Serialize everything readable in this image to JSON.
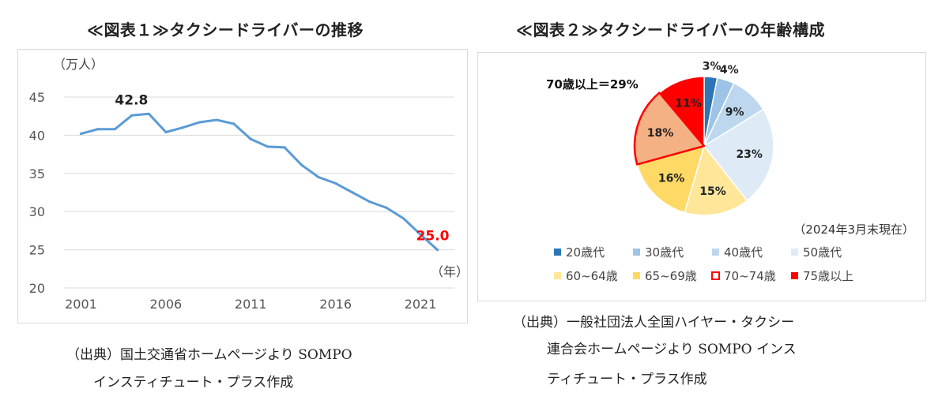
{
  "figure1": {
    "title": "≪図表１≫タクシードライバーの推移",
    "source_line1": "（出典）国土交通省ホームページより SOMPO",
    "source_line2": "インスティチュート・プラス作成"
  },
  "figure2": {
    "title": "≪図表２≫タクシードライバーの年齢構成",
    "source_line1": "（出典）一般社団法人全国ハイヤー・タクシー",
    "source_line2": "連合会ホームページより SOMPO インス",
    "source_line3": "ティチュート・プラス作成"
  },
  "chart_data": [
    {
      "type": "line",
      "ylabel": "（万人）",
      "xlabel": "（年）",
      "ylim": [
        20,
        45
      ],
      "xlim": [
        2000,
        2023
      ],
      "yticks": [
        20,
        25,
        30,
        35,
        40,
        45
      ],
      "xticks": [
        2001,
        2006,
        2011,
        2016,
        2021
      ],
      "grid": true,
      "color": "#5b9bd5",
      "series": [
        {
          "x": [
            2001,
            2002,
            2003,
            2004,
            2005,
            2006,
            2007,
            2008,
            2009,
            2010,
            2011,
            2012,
            2013,
            2014,
            2015,
            2016,
            2017,
            2018,
            2019,
            2020,
            2021,
            2022
          ],
          "values": [
            40.2,
            40.8,
            40.8,
            42.6,
            42.8,
            40.4,
            41.0,
            41.7,
            42.0,
            41.5,
            39.5,
            38.5,
            38.4,
            36.1,
            34.5,
            33.7,
            32.5,
            31.3,
            30.5,
            29.1,
            27.0,
            25.0
          ]
        }
      ],
      "annotations": [
        {
          "text": "42.8",
          "x": 2005,
          "y": 42.8,
          "color": "#222222"
        },
        {
          "text": "25.0",
          "x": 2022,
          "y": 25.0,
          "color": "#ff0000"
        }
      ]
    },
    {
      "type": "pie",
      "subtitle": "（2024年3月末現在）",
      "callout": "70歳以上＝29%",
      "slices": [
        {
          "name": "20歳代",
          "value": 3,
          "label": "3%",
          "color": "#2e75b6"
        },
        {
          "name": "30歳代",
          "value": 4,
          "label": "4%",
          "color": "#9dc3e6"
        },
        {
          "name": "40歳代",
          "value": 9,
          "label": "9%",
          "color": "#bdd7ee"
        },
        {
          "name": "50歳代",
          "value": 23,
          "label": "23%",
          "color": "#deebf7"
        },
        {
          "name": "60~64歳",
          "value": 15,
          "label": "15%",
          "color": "#ffe699"
        },
        {
          "name": "65~69歳",
          "value": 16,
          "label": "16%",
          "color": "#ffd966"
        },
        {
          "name": "70~74歳",
          "value": 18,
          "label": "18%",
          "color": "#f4b183",
          "outline": "#ff0000"
        },
        {
          "name": "75歳以上",
          "value": 11,
          "label": "11%",
          "color": "#ff0000"
        }
      ],
      "legend_placement": "bottom"
    }
  ]
}
